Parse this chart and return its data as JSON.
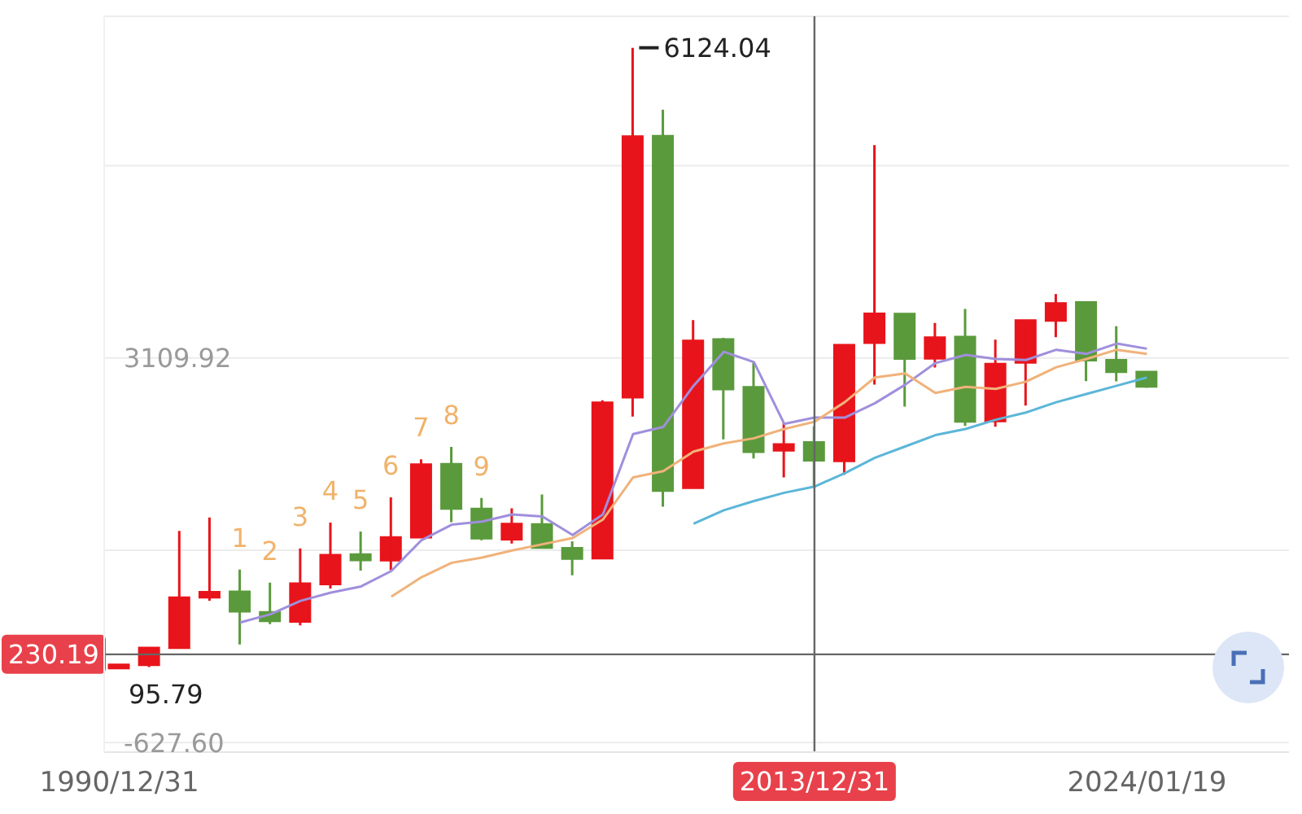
{
  "chart_data": {
    "type": "candlestick",
    "categories": [
      "1990/12/31",
      null,
      null,
      null,
      null,
      null,
      null,
      null,
      null,
      null,
      null,
      null,
      null,
      null,
      null,
      null,
      null,
      null,
      null,
      null,
      null,
      null,
      null,
      "2013/12/31",
      null,
      null,
      null,
      null,
      null,
      null,
      null,
      null,
      null,
      null,
      "2024/01/19"
    ],
    "ohlc": [
      [
        96.05,
        127.61,
        95.79,
        127.61
      ],
      [
        127.61,
        292.75,
        105.77,
        292.75
      ],
      [
        293.75,
        1429.01,
        292.76,
        780.39
      ],
      [
        784.13,
        1558.95,
        750.46,
        833.8
      ],
      [
        837.7,
        1052.94,
        325.89,
        647.87
      ],
      [
        637.72,
        926.41,
        524.43,
        555.29
      ],
      [
        550.26,
        1258.69,
        512.83,
        917.02
      ],
      [
        914.06,
        1510.18,
        870.18,
        1194.1
      ],
      [
        1200.95,
        1422.98,
        1043.02,
        1146.7
      ],
      [
        1144.89,
        1756.18,
        1047.83,
        1366.58
      ],
      [
        1368.69,
        2125.72,
        1361.21,
        2073.48
      ],
      [
        2077.08,
        2245.44,
        1514.86,
        1645.97
      ],
      [
        1643.48,
        1748.89,
        1339.2,
        1357.65
      ],
      [
        1347.43,
        1649.6,
        1307.4,
        1497.04
      ],
      [
        1492.72,
        1783.01,
        1259.43,
        1266.5
      ],
      [
        1260.78,
        1328.53,
        998.23,
        1161.06
      ],
      [
        1163.88,
        2698.9,
        1161.91,
        2675.47
      ],
      [
        2728.19,
        6124.04,
        2541.53,
        5261.56
      ],
      [
        5265,
        5522.78,
        1664.93,
        1820.81
      ],
      [
        1849.02,
        3478.01,
        1844.09,
        3277.14
      ],
      [
        3289.75,
        3306.75,
        2319.74,
        2808.08
      ],
      [
        2825.33,
        3067.46,
        2134.02,
        2199.42
      ],
      [
        2212,
        2478.38,
        1949.46,
        2269.13
      ],
      [
        2289.51,
        2444.8,
        1849.65,
        2115.98
      ],
      [
        2109.39,
        3239.36,
        1974.38,
        3234.68
      ],
      [
        3258.63,
        5178.19,
        2850.71,
        3539.18
      ],
      [
        3536.59,
        3538.69,
        2638.3,
        3103.64
      ],
      [
        3105.31,
        3450.49,
        3016.53,
        3307.17
      ],
      [
        3314.03,
        3587.03,
        2449.2,
        2493.9
      ],
      [
        2497.88,
        3288.45,
        2440.91,
        3050.12
      ],
      [
        3066.34,
        3474.92,
        2646.8,
        3473.07
      ],
      [
        3474.68,
        3731.69,
        3312.72,
        3639.78
      ],
      [
        3649.15,
        3651.89,
        2885.09,
        3089.26
      ],
      [
        3087.51,
        3418.95,
        2882.02,
        2974.93
      ],
      [
        2972.78,
        2976.27,
        2819.93,
        2832.28
      ]
    ],
    "colors": [
      "#e8141b",
      "#e8141b",
      "#e8141b",
      "#e8141b",
      "#5a9a3c",
      "#5a9a3c",
      "#e8141b",
      "#e8141b",
      "#5a9a3c",
      "#e8141b",
      "#e8141b",
      "#5a9a3c",
      "#5a9a3c",
      "#e8141b",
      "#5a9a3c",
      "#5a9a3c",
      "#e8141b",
      "#e8141b",
      "#5a9a3c",
      "#e8141b",
      "#5a9a3c",
      "#5a9a3c",
      "#e8141b",
      "#5a9a3c",
      "#e8141b",
      "#e8141b",
      "#5a9a3c",
      "#e8141b",
      "#5a9a3c",
      "#e8141b",
      "#e8141b",
      "#e8141b",
      "#5a9a3c",
      "#5a9a3c",
      "#5a9a3c"
    ],
    "value_labels": [
      "95.79",
      null,
      null,
      null,
      "1",
      "2",
      "3",
      "4",
      "5",
      "6",
      "7",
      "8",
      "9",
      null,
      null,
      null,
      null,
      "6124.04",
      null,
      null,
      null,
      null,
      null,
      null,
      null,
      null,
      null,
      null,
      null,
      null,
      null,
      null,
      null,
      null,
      null
    ],
    "series": [
      {
        "type": "line",
        "color": "#a08fdc",
        "values": [
          null,
          null,
          null,
          null,
          540,
          620,
          750,
          830,
          890,
          1040,
          1340,
          1490,
          1520,
          1590,
          1570,
          1390,
          1590,
          2370,
          2440,
          2840,
          3170,
          3070,
          2470,
          2530,
          2530,
          2670,
          2850,
          3060,
          3140,
          3100,
          3090,
          3190,
          3150,
          3250,
          3200
        ]
      },
      {
        "type": "line",
        "color": "#f0b27a",
        "values": [
          null,
          null,
          null,
          null,
          null,
          null,
          null,
          null,
          null,
          790,
          980,
          1120,
          1170,
          1240,
          1300,
          1360,
          1540,
          1950,
          2010,
          2200,
          2280,
          2330,
          2420,
          2490,
          2680,
          2920,
          2960,
          2770,
          2830,
          2810,
          2880,
          3020,
          3100,
          3190,
          3150
        ]
      },
      {
        "type": "line",
        "color": "#5cb6d8",
        "values": [
          null,
          null,
          null,
          null,
          null,
          null,
          null,
          null,
          null,
          null,
          null,
          null,
          null,
          null,
          null,
          null,
          null,
          null,
          null,
          1500,
          1630,
          1720,
          1800,
          1860,
          1990,
          2140,
          2250,
          2360,
          2420,
          2510,
          2580,
          2680,
          2760,
          2840,
          2920
        ]
      }
    ],
    "ylim": [
      -720,
      6430
    ],
    "yticks": [
      {
        "value": -627.6,
        "label": "-627.60"
      },
      {
        "value": 1241.16,
        "label": null
      },
      3109.92,
      {
        "value": 4978.68,
        "label": null
      }
    ],
    "grid": "y",
    "ref_lines": [
      {
        "axis": "x",
        "value": "2013/12/31",
        "color": "#666666"
      },
      {
        "axis": "y",
        "value": 230.19,
        "label": "230.19",
        "color": "#666666"
      }
    ]
  }
}
